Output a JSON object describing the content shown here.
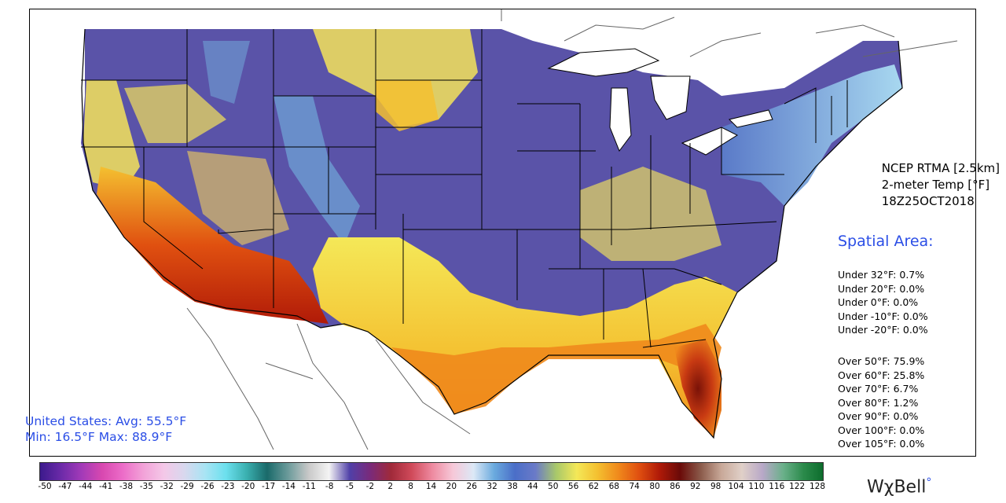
{
  "map": {
    "title_lines": [
      "NCEP RTMA [2.5km]",
      "2-meter Temp [°F]",
      "18Z25OCT2018"
    ],
    "colors": {
      "cold_purple": "#5a53a8",
      "blue": "#6fa2d6",
      "yellow": "#f4e35a",
      "orange": "#f08a1c",
      "red": "#c83a12",
      "dark_red": "#7a1208",
      "state_lines": "#000000",
      "water": "#ffffff"
    }
  },
  "spatial": {
    "title": "Spatial Area:",
    "under": [
      "Under 32°F: 0.7%",
      "Under 20°F: 0.0%",
      "Under 0°F: 0.0%",
      "Under -10°F: 0.0%",
      "Under -20°F: 0.0%"
    ],
    "over": [
      "Over 50°F: 75.9%",
      "Over 60°F: 25.8%",
      "Over 70°F: 6.7%",
      "Over 80°F: 1.2%",
      "Over 90°F: 0.0%",
      "Over 100°F: 0.0%",
      "Over 105°F: 0.0%"
    ]
  },
  "summary": {
    "line1": "United States: Avg:  55.5°F",
    "line2": "Min:  16.5°F Max:  88.9°F"
  },
  "colorbar": {
    "ticks": [
      "-50",
      "-47",
      "-44",
      "-41",
      "-38",
      "-35",
      "-32",
      "-29",
      "-26",
      "-23",
      "-20",
      "-17",
      "-14",
      "-11",
      "-8",
      "-5",
      "-2",
      "2",
      "8",
      "14",
      "20",
      "26",
      "32",
      "38",
      "44",
      "50",
      "56",
      "62",
      "68",
      "74",
      "80",
      "86",
      "92",
      "98",
      "104",
      "110",
      "116",
      "122",
      "128"
    ],
    "stops": [
      "#3b1a8c",
      "#6b2aa8",
      "#a23ab8",
      "#d848b0",
      "#ec6cc8",
      "#f2a2d8",
      "#f4c8e8",
      "#d8d8ee",
      "#a8e4f4",
      "#6ce0ee",
      "#3ab0b0",
      "#1a6a6a",
      "#6a9a9a",
      "#c8c8c8",
      "#f4f4f4",
      "#5040a8",
      "#7a2a7a",
      "#a02a3a",
      "#d04a5a",
      "#ee8aa0",
      "#f6c8d8",
      "#dce8f6",
      "#6aaade",
      "#4a6ec8",
      "#6a7ac8",
      "#a8c86a",
      "#f4e858",
      "#f4c030",
      "#f08a1c",
      "#e05010",
      "#b01a08",
      "#6a0a08",
      "#8a5a4a",
      "#c8a898",
      "#e0d0c8",
      "#b8a8c8",
      "#6ab08a",
      "#2a8a4a",
      "#0a6a2a"
    ]
  },
  "brand": {
    "name": "WχBell",
    "dot": "°"
  }
}
